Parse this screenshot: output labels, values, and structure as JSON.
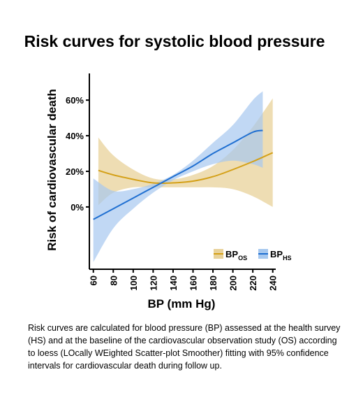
{
  "title": "Risk curves for systolic blood pressure",
  "caption": "Risk curves are calculated for blood pressure (BP) assessed at the health survey (HS) and at the baseline of the cardiovascular observation study (OS) according to loess (LOcally WEighted Scatter-plot Smoother) fitting with 95% confidence intervals for cardiovascular death during follow up.",
  "chart_data": {
    "type": "line",
    "xlabel": "BP (mm Hg)",
    "ylabel": "Risk of cardiovascular death",
    "x_ticks": [
      60,
      80,
      100,
      120,
      140,
      160,
      180,
      200,
      220,
      240
    ],
    "y_ticks": [
      0,
      20,
      40,
      60
    ],
    "y_tick_labels": [
      "0%",
      "20%",
      "40%",
      "60%"
    ],
    "xlim": [
      56,
      243
    ],
    "ylim": [
      -35,
      75
    ],
    "legend_position": "bottom-right",
    "legend": [
      {
        "base": "BP",
        "sub": "OS"
      },
      {
        "base": "BP",
        "sub": "HS"
      }
    ],
    "series": [
      {
        "color": "#d4a017",
        "band_color": "#e8d29a",
        "x": [
          65,
          80,
          100,
          120,
          140,
          160,
          180,
          200,
          220,
          240
        ],
        "y": [
          20.5,
          18,
          15.5,
          13.5,
          13.5,
          14.5,
          17,
          21,
          25.5,
          30.5
        ],
        "lower": [
          1,
          8,
          11,
          11,
          11,
          11,
          11,
          10,
          6,
          0
        ],
        "upper": [
          39,
          29,
          21,
          16,
          15.5,
          18,
          23,
          32,
          45,
          61
        ]
      },
      {
        "color": "#1f6fd1",
        "band_color": "#a6c8ef",
        "x": [
          60,
          80,
          100,
          120,
          140,
          160,
          180,
          200,
          220,
          230
        ],
        "y": [
          -7,
          -1,
          5,
          11,
          17,
          23,
          30,
          36,
          42,
          43
        ],
        "lower": [
          -31,
          -12,
          -1,
          8,
          15,
          20,
          24,
          26,
          24,
          22
        ],
        "upper": [
          16,
          9,
          10,
          13,
          18,
          26,
          36,
          46,
          60,
          65
        ]
      }
    ]
  }
}
